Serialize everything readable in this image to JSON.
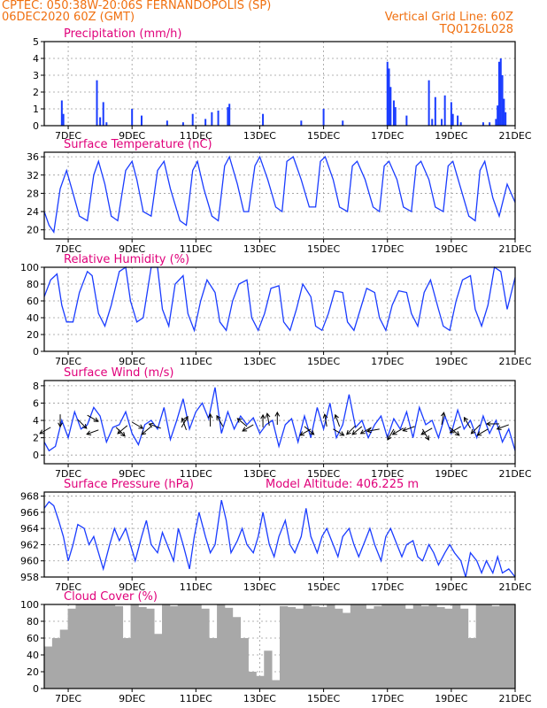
{
  "header": {
    "line1_left": "CPTEC:  050:38W-20:06S  FERNANDOPOLIS (SP)",
    "line2_left": "06DEC2020 60Z (GMT)",
    "line2_right": "Vertical Grid Line: 60Z",
    "line3_right": "TQ0126L028"
  },
  "colors": {
    "header": "#f07010",
    "title": "#e0007a",
    "series": "#1a3cff",
    "cloud": "#a8a8a8",
    "frame": "#000000",
    "grid": "#9a9a9a"
  },
  "x_ticks": [
    "7DEC",
    "9DEC",
    "11DEC",
    "13DEC",
    "15DEC",
    "17DEC",
    "19DEC",
    "21DEC"
  ],
  "chart_data": [
    {
      "type": "bar",
      "title": "Precipitation (mm/h)",
      "ylim": [
        0,
        5
      ],
      "yticks": [
        0,
        1,
        2,
        3,
        4,
        5
      ],
      "x_range": [
        6.25,
        21
      ],
      "grid": true,
      "x": [
        6.8,
        6.85,
        7.9,
        8.0,
        8.1,
        8.2,
        9.0,
        9.3,
        10.1,
        10.6,
        10.9,
        11.3,
        11.5,
        11.7,
        12.0,
        12.05,
        13.1,
        14.3,
        15.0,
        15.6,
        17.0,
        17.05,
        17.1,
        17.2,
        17.25,
        17.6,
        18.3,
        18.4,
        18.5,
        18.7,
        18.8,
        19.0,
        19.05,
        19.2,
        19.3,
        20.0,
        20.2,
        20.4,
        20.45,
        20.5,
        20.55,
        20.6,
        20.65,
        20.7
      ],
      "values": [
        1.5,
        0.7,
        2.7,
        0.5,
        1.4,
        0.2,
        1.0,
        0.6,
        0.3,
        0.2,
        0.7,
        0.4,
        0.8,
        0.9,
        1.1,
        1.3,
        0.7,
        0.3,
        1.0,
        0.3,
        3.8,
        3.4,
        2.3,
        1.5,
        1.1,
        0.6,
        2.7,
        0.4,
        1.7,
        0.4,
        1.8,
        1.4,
        0.7,
        0.6,
        0.2,
        0.2,
        0.2,
        0.4,
        1.2,
        3.8,
        4.0,
        3.0,
        1.6,
        0.8
      ]
    },
    {
      "type": "line",
      "title": "Surface Temperature (nC)",
      "ylim": [
        18,
        37
      ],
      "yticks": [
        20,
        24,
        28,
        32,
        36
      ],
      "x_range": [
        6.25,
        21
      ],
      "grid": true,
      "x": [
        6.25,
        6.4,
        6.55,
        6.75,
        6.95,
        7.15,
        7.35,
        7.6,
        7.8,
        7.95,
        8.15,
        8.35,
        8.55,
        8.8,
        9.0,
        9.15,
        9.35,
        9.6,
        9.8,
        10.0,
        10.2,
        10.5,
        10.7,
        10.9,
        11.05,
        11.25,
        11.5,
        11.7,
        11.9,
        12.05,
        12.3,
        12.5,
        12.65,
        12.85,
        13.0,
        13.25,
        13.5,
        13.7,
        13.85,
        14.05,
        14.3,
        14.55,
        14.75,
        14.9,
        15.05,
        15.3,
        15.5,
        15.75,
        15.9,
        16.05,
        16.3,
        16.55,
        16.75,
        16.9,
        17.05,
        17.3,
        17.5,
        17.75,
        17.9,
        18.05,
        18.3,
        18.5,
        18.75,
        18.9,
        19.05,
        19.3,
        19.55,
        19.75,
        19.9,
        20.05,
        20.3,
        20.5,
        20.75,
        21.0
      ],
      "values": [
        24,
        21,
        19.5,
        29,
        33,
        28,
        23,
        22,
        32,
        35,
        30,
        23,
        22,
        33,
        35,
        31,
        24,
        23,
        33,
        35,
        29,
        22,
        21,
        33,
        35,
        29,
        23,
        22,
        34,
        36,
        30,
        24,
        24,
        34,
        36,
        31,
        25,
        24,
        35,
        36,
        31,
        25,
        25,
        35,
        36,
        31,
        25,
        24,
        34,
        35,
        31,
        25,
        24,
        34,
        35,
        31,
        25,
        24,
        34,
        35,
        31,
        25,
        24,
        34,
        35,
        29,
        23,
        22,
        33,
        35,
        27,
        23,
        30,
        26
      ]
    },
    {
      "type": "line",
      "title": "Relative Humidity (%)",
      "ylim": [
        0,
        100
      ],
      "yticks": [
        0,
        20,
        40,
        60,
        80,
        100
      ],
      "x_range": [
        6.25,
        21
      ],
      "grid": true,
      "x": [
        6.25,
        6.45,
        6.65,
        6.8,
        6.95,
        7.15,
        7.35,
        7.6,
        7.75,
        7.95,
        8.15,
        8.35,
        8.6,
        8.8,
        8.95,
        9.15,
        9.35,
        9.6,
        9.8,
        9.95,
        10.15,
        10.35,
        10.6,
        10.75,
        10.95,
        11.15,
        11.35,
        11.6,
        11.75,
        11.95,
        12.15,
        12.35,
        12.6,
        12.75,
        12.95,
        13.15,
        13.35,
        13.6,
        13.75,
        13.95,
        14.15,
        14.35,
        14.6,
        14.75,
        14.95,
        15.15,
        15.35,
        15.6,
        15.75,
        15.95,
        16.15,
        16.35,
        16.6,
        16.75,
        16.95,
        17.15,
        17.35,
        17.6,
        17.75,
        17.95,
        18.15,
        18.35,
        18.6,
        18.75,
        18.95,
        19.15,
        19.35,
        19.6,
        19.75,
        19.95,
        20.15,
        20.35,
        20.55,
        20.75,
        21.0
      ],
      "values": [
        65,
        85,
        92,
        55,
        35,
        35,
        70,
        95,
        90,
        45,
        30,
        55,
        95,
        100,
        60,
        35,
        40,
        100,
        100,
        50,
        30,
        80,
        90,
        45,
        25,
        60,
        85,
        70,
        35,
        25,
        60,
        80,
        85,
        40,
        25,
        45,
        75,
        78,
        35,
        25,
        50,
        80,
        65,
        30,
        25,
        45,
        72,
        70,
        35,
        25,
        50,
        75,
        70,
        40,
        25,
        55,
        72,
        70,
        45,
        30,
        70,
        85,
        50,
        30,
        25,
        60,
        85,
        90,
        50,
        30,
        55,
        100,
        95,
        50,
        88
      ]
    },
    {
      "type": "line",
      "title": "Surface Wind (m/s)",
      "ylim": [
        -1,
        8.6
      ],
      "yticks": [
        0,
        2,
        4,
        6,
        8
      ],
      "x_range": [
        6.25,
        21
      ],
      "grid": true,
      "x": [
        6.25,
        6.4,
        6.6,
        6.8,
        7.0,
        7.2,
        7.4,
        7.6,
        7.8,
        8.0,
        8.2,
        8.4,
        8.6,
        8.8,
        9.0,
        9.2,
        9.4,
        9.6,
        9.8,
        10.0,
        10.2,
        10.4,
        10.6,
        10.8,
        11.0,
        11.2,
        11.4,
        11.6,
        11.8,
        12.0,
        12.2,
        12.4,
        12.6,
        12.8,
        13.0,
        13.2,
        13.4,
        13.6,
        13.8,
        14.0,
        14.2,
        14.4,
        14.6,
        14.8,
        15.0,
        15.2,
        15.4,
        15.6,
        15.8,
        16.0,
        16.2,
        16.4,
        16.6,
        16.8,
        17.0,
        17.2,
        17.4,
        17.6,
        17.8,
        18.0,
        18.2,
        18.4,
        18.6,
        18.8,
        19.0,
        19.2,
        19.4,
        19.6,
        19.8,
        20.0,
        20.2,
        20.4,
        20.6,
        20.8,
        21.0
      ],
      "values": [
        1.5,
        0.5,
        1,
        4,
        2,
        5,
        3,
        3.5,
        5.5,
        4.5,
        1.5,
        3.2,
        3.5,
        5,
        2.5,
        1.2,
        3.5,
        4,
        3,
        5.5,
        1.8,
        4,
        6.5,
        3,
        5,
        6,
        4.2,
        7.8,
        2.5,
        5,
        3,
        4.5,
        3.5,
        4.3,
        2.5,
        3.5,
        4,
        1,
        3.5,
        4.2,
        1.5,
        4.5,
        2,
        5.5,
        3,
        6,
        2,
        3.5,
        7,
        3.2,
        4,
        2,
        3.5,
        4.5,
        2,
        4.2,
        3,
        5,
        2,
        5.5,
        3.5,
        4,
        2,
        4.5,
        2.5,
        5.2,
        3,
        4,
        2,
        4.5,
        2.5,
        4,
        1.5,
        3,
        0.5
      ],
      "arrows": [
        [
          6.45,
          3.2,
          -150
        ],
        [
          6.75,
          4.7,
          -90
        ],
        [
          7.3,
          4.1,
          -45
        ],
        [
          7.6,
          4.6,
          -30
        ],
        [
          7.95,
          2.9,
          -160
        ],
        [
          8.5,
          3.2,
          -45
        ],
        [
          8.85,
          3.4,
          -140
        ],
        [
          9.0,
          3.8,
          -30
        ],
        [
          9.6,
          3.3,
          -140
        ],
        [
          9.9,
          3.1,
          160
        ],
        [
          10.55,
          3.2,
          60
        ],
        [
          10.7,
          2.9,
          110
        ],
        [
          11.45,
          3.3,
          90
        ],
        [
          11.85,
          3.3,
          120
        ],
        [
          12.6,
          3.3,
          140
        ],
        [
          12.8,
          3.5,
          -150
        ],
        [
          13.1,
          3.2,
          90
        ],
        [
          13.3,
          3.4,
          100
        ],
        [
          13.55,
          3.5,
          90
        ],
        [
          14.4,
          3.3,
          -40
        ],
        [
          14.6,
          3.0,
          -150
        ],
        [
          15.1,
          3.3,
          100
        ],
        [
          15.3,
          3.0,
          -30
        ],
        [
          15.5,
          3.3,
          110
        ],
        [
          16.0,
          3.4,
          -135
        ],
        [
          16.2,
          3.3,
          -140
        ],
        [
          16.5,
          3.2,
          -150
        ],
        [
          16.75,
          3.0,
          -170
        ],
        [
          17.2,
          3.0,
          -120
        ],
        [
          17.5,
          3.1,
          -150
        ],
        [
          17.85,
          3.3,
          -160
        ],
        [
          18.1,
          3.0,
          -60
        ],
        [
          18.4,
          3.1,
          -150
        ],
        [
          18.7,
          3.5,
          80
        ],
        [
          18.95,
          3.2,
          -40
        ],
        [
          19.3,
          3.3,
          -150
        ],
        [
          19.6,
          3.1,
          120
        ],
        [
          19.9,
          3.5,
          -135
        ],
        [
          20.15,
          3.0,
          -150
        ],
        [
          20.5,
          3.6,
          180
        ],
        [
          20.8,
          3.5,
          -160
        ]
      ]
    },
    {
      "type": "line",
      "title": "Surface Pressure (hPa)",
      "annotation": "Model Altitude: 406.225 m",
      "ylim": [
        958,
        968.5
      ],
      "yticks": [
        958,
        960,
        962,
        964,
        966,
        968
      ],
      "x_range": [
        6.25,
        21
      ],
      "grid": true,
      "x": [
        6.25,
        6.4,
        6.55,
        6.7,
        6.85,
        7.0,
        7.15,
        7.3,
        7.5,
        7.65,
        7.8,
        7.95,
        8.1,
        8.3,
        8.45,
        8.6,
        8.8,
        8.95,
        9.1,
        9.3,
        9.45,
        9.6,
        9.8,
        9.95,
        10.1,
        10.3,
        10.45,
        10.6,
        10.8,
        10.95,
        11.1,
        11.3,
        11.45,
        11.6,
        11.8,
        11.95,
        12.1,
        12.3,
        12.45,
        12.6,
        12.8,
        12.95,
        13.1,
        13.3,
        13.45,
        13.6,
        13.8,
        13.95,
        14.1,
        14.3,
        14.45,
        14.6,
        14.8,
        14.95,
        15.1,
        15.3,
        15.45,
        15.6,
        15.8,
        15.95,
        16.1,
        16.3,
        16.45,
        16.6,
        16.8,
        16.95,
        17.1,
        17.3,
        17.45,
        17.6,
        17.8,
        17.95,
        18.1,
        18.3,
        18.45,
        18.6,
        18.8,
        18.95,
        19.1,
        19.3,
        19.45,
        19.6,
        19.8,
        19.95,
        20.1,
        20.3,
        20.45,
        20.6,
        20.8,
        21.0
      ],
      "values": [
        966.5,
        967.3,
        966.8,
        965,
        963,
        960,
        962,
        964.5,
        964,
        962,
        963,
        961,
        959,
        962,
        964,
        962.5,
        964,
        962,
        960,
        963,
        965,
        962,
        961,
        963.5,
        962,
        960,
        964,
        962,
        959,
        963,
        966,
        963,
        961,
        962,
        967.5,
        965,
        961,
        962.5,
        964,
        962,
        961,
        963,
        966,
        962,
        960.5,
        963,
        965,
        962,
        961,
        963,
        966.5,
        963,
        961,
        963,
        964,
        962,
        960.5,
        963,
        964,
        962,
        960.5,
        962.5,
        964,
        962,
        960,
        963,
        964,
        962,
        960.5,
        962,
        962.5,
        960.5,
        960,
        962,
        961,
        959.5,
        961,
        962,
        961,
        960,
        958,
        961,
        960,
        958.5,
        960,
        958.5,
        960.5,
        958.5,
        959,
        957.5
      ]
    },
    {
      "type": "bar",
      "title": "Cloud Cover (%)",
      "ylim": [
        0,
        100
      ],
      "yticks": [
        0,
        20,
        40,
        60,
        80,
        100
      ],
      "x_range": [
        6.25,
        21
      ],
      "grid": true,
      "x": [
        6.25,
        6.5,
        6.75,
        7.0,
        7.25,
        7.5,
        7.75,
        8.0,
        8.25,
        8.5,
        8.75,
        9.0,
        9.25,
        9.5,
        9.75,
        10.0,
        10.25,
        10.5,
        10.75,
        11.0,
        11.25,
        11.5,
        11.75,
        12.0,
        12.25,
        12.5,
        12.75,
        13.0,
        13.25,
        13.5,
        13.75,
        14.0,
        14.25,
        14.5,
        14.75,
        15.0,
        15.25,
        15.5,
        15.75,
        16.0,
        16.25,
        16.5,
        16.75,
        17.0,
        17.25,
        17.5,
        17.75,
        18.0,
        18.25,
        18.5,
        18.75,
        19.0,
        19.25,
        19.5,
        19.75,
        20.0,
        20.25,
        20.5,
        20.75,
        21.0
      ],
      "values": [
        50,
        60,
        70,
        95,
        100,
        100,
        100,
        100,
        100,
        98,
        60,
        100,
        97,
        95,
        65,
        100,
        98,
        100,
        100,
        100,
        95,
        60,
        100,
        96,
        85,
        60,
        20,
        15,
        45,
        10,
        98,
        97,
        95,
        100,
        98,
        97,
        100,
        95,
        90,
        100,
        100,
        95,
        98,
        100,
        100,
        100,
        95,
        100,
        98,
        100,
        97,
        95,
        100,
        95,
        60,
        100,
        100,
        98,
        100,
        100
      ]
    }
  ]
}
